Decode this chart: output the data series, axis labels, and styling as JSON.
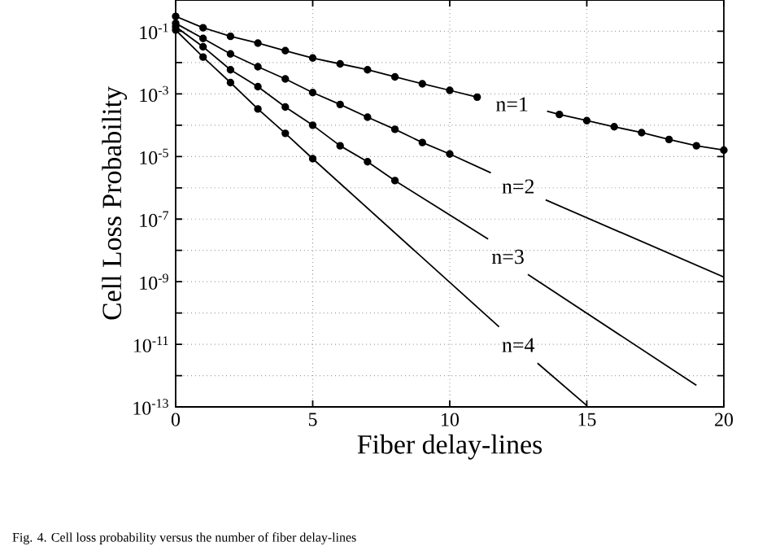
{
  "chart_data": {
    "type": "line",
    "xlabel": "Fiber delay-lines",
    "ylabel": "Cell Loss Probability",
    "xlim": [
      0,
      20
    ],
    "ylim": [
      1e-13,
      1
    ],
    "log": "y",
    "grid": true,
    "xticks": [
      0,
      5,
      10,
      15,
      20
    ],
    "yticks": [
      {
        "value": 1e-13,
        "label": "10$^{-13}$"
      },
      {
        "value": 1e-12,
        "label": null
      },
      {
        "value": 1e-11,
        "label": "10$^{-11}$"
      },
      {
        "value": 1e-10,
        "label": null
      },
      {
        "value": 1e-09,
        "label": "10$^{-9}$"
      },
      {
        "value": 1e-08,
        "label": null
      },
      {
        "value": 1e-07,
        "label": "10$^{-7}$"
      },
      {
        "value": 1e-06,
        "label": null
      },
      {
        "value": 1e-05,
        "label": "10$^{-5}$"
      },
      {
        "value": 0.0001,
        "label": null
      },
      {
        "value": 0.001,
        "label": "10$^{-3}$"
      },
      {
        "value": 0.01,
        "label": null
      },
      {
        "value": 0.1,
        "label": "10$^{-1}$"
      }
    ],
    "series": [
      {
        "name": "n=1",
        "marker": "none",
        "color": "#000000",
        "x": [
          0,
          1,
          2,
          3,
          4,
          5,
          6,
          7,
          8,
          9,
          10,
          11,
          12.4,
          13.55,
          14,
          15,
          16,
          17,
          18,
          19,
          20
        ],
        "values": [
          0.3,
          0.13,
          0.069,
          0.042,
          0.024,
          0.014,
          0.0091,
          0.0059,
          0.0035,
          0.0021,
          0.0013,
          0.00079,
          null,
          0.00028,
          0.00022,
          0.00014,
          8.9e-05,
          5.8e-05,
          3.5e-05,
          2.2e-05,
          1.6e-05
        ]
      },
      {
        "type": "scatter",
        "marker": "circle",
        "color": "#000000",
        "x": [
          0,
          1,
          2,
          3,
          4,
          5,
          6,
          7,
          8,
          9,
          10,
          11,
          14,
          15,
          16,
          17,
          18,
          19,
          20
        ],
        "values": [
          0.3,
          0.13,
          0.069,
          0.042,
          0.024,
          0.014,
          0.0091,
          0.0059,
          0.0035,
          0.0021,
          0.0013,
          0.00079,
          0.00022,
          0.00014,
          8.9e-05,
          5.8e-05,
          3.5e-05,
          2.2e-05,
          1.6e-05
        ]
      },
      {
        "name": "n=2",
        "marker": "none",
        "color": "#000000",
        "x": [
          0,
          1,
          2,
          3,
          4,
          5,
          6,
          7,
          8,
          9,
          10,
          11.5,
          12.5,
          13.5,
          20
        ],
        "values": [
          0.18,
          0.059,
          0.019,
          0.0074,
          0.003,
          0.0011,
          0.00046,
          0.00018,
          7.4e-05,
          2.8e-05,
          1.2e-05,
          3e-06,
          null,
          4.1e-07,
          1.4e-09
        ]
      },
      {
        "type": "scatter",
        "marker": "circle",
        "color": "#000000",
        "x": [
          0,
          1,
          2,
          3,
          4,
          5,
          6,
          7,
          8,
          9,
          10
        ],
        "values": [
          0.18,
          0.059,
          0.019,
          0.0074,
          0.003,
          0.0011,
          0.00046,
          0.00018,
          7.4e-05,
          2.8e-05,
          1.2e-05
        ]
      },
      {
        "name": "n=3",
        "marker": "none",
        "color": "#000000",
        "x": [
          0,
          1,
          2,
          3,
          4,
          5,
          6,
          7,
          8,
          11.4,
          12.1,
          12.85,
          19
        ],
        "values": [
          0.14,
          0.032,
          0.0059,
          0.0017,
          0.00038,
          0.0001,
          2.2e-05,
          6.8e-06,
          1.7e-06,
          2.3e-08,
          null,
          1.7e-09,
          4.9e-13
        ]
      },
      {
        "type": "scatter",
        "marker": "circle",
        "color": "#000000",
        "x": [
          0,
          1,
          2,
          3,
          4,
          5,
          6,
          7,
          8
        ],
        "values": [
          0.14,
          0.032,
          0.0059,
          0.0017,
          0.00038,
          0.0001,
          2.2e-05,
          6.8e-06,
          1.7e-06
        ]
      },
      {
        "name": "n=4",
        "marker": "none",
        "color": "#000000",
        "x": [
          0,
          1,
          2,
          3,
          4,
          5,
          11.8,
          12.5,
          13.2,
          15
        ],
        "values": [
          0.11,
          0.015,
          0.0023,
          0.00033,
          5.5e-05,
          8.5e-06,
          3.6e-11,
          null,
          2.5e-12,
          1.1e-13
        ]
      },
      {
        "type": "scatter",
        "marker": "circle",
        "color": "#000000",
        "x": [
          0,
          1,
          2,
          3,
          4,
          5
        ],
        "values": [
          0.11,
          0.015,
          0.0023,
          0.00033,
          5.5e-05,
          8.5e-06
        ]
      }
    ],
    "annotations": [
      "Fig. 4. Cell loss probability versus the number of fiber delay-lines"
    ]
  }
}
